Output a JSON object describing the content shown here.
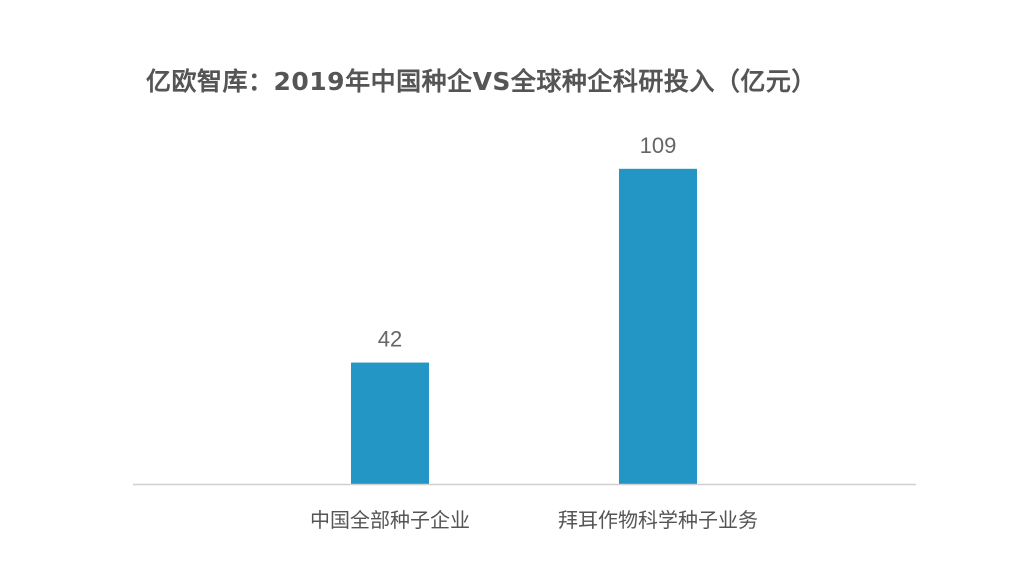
{
  "chart_data": {
    "type": "bar",
    "title": "亿欧智库：2019年中国种企VS全球种企科研投入（亿元）",
    "categories": [
      "中国全部种子企业",
      "拜耳作物科学种子业务"
    ],
    "values": [
      42,
      109
    ],
    "data_labels": [
      "42",
      "109"
    ],
    "xlabel": "",
    "ylabel": "",
    "ylim": [
      0,
      120
    ],
    "grid": false,
    "legend": "none",
    "colors": {
      "bar": "#2496c6",
      "axis": "#d0d0d0"
    }
  }
}
